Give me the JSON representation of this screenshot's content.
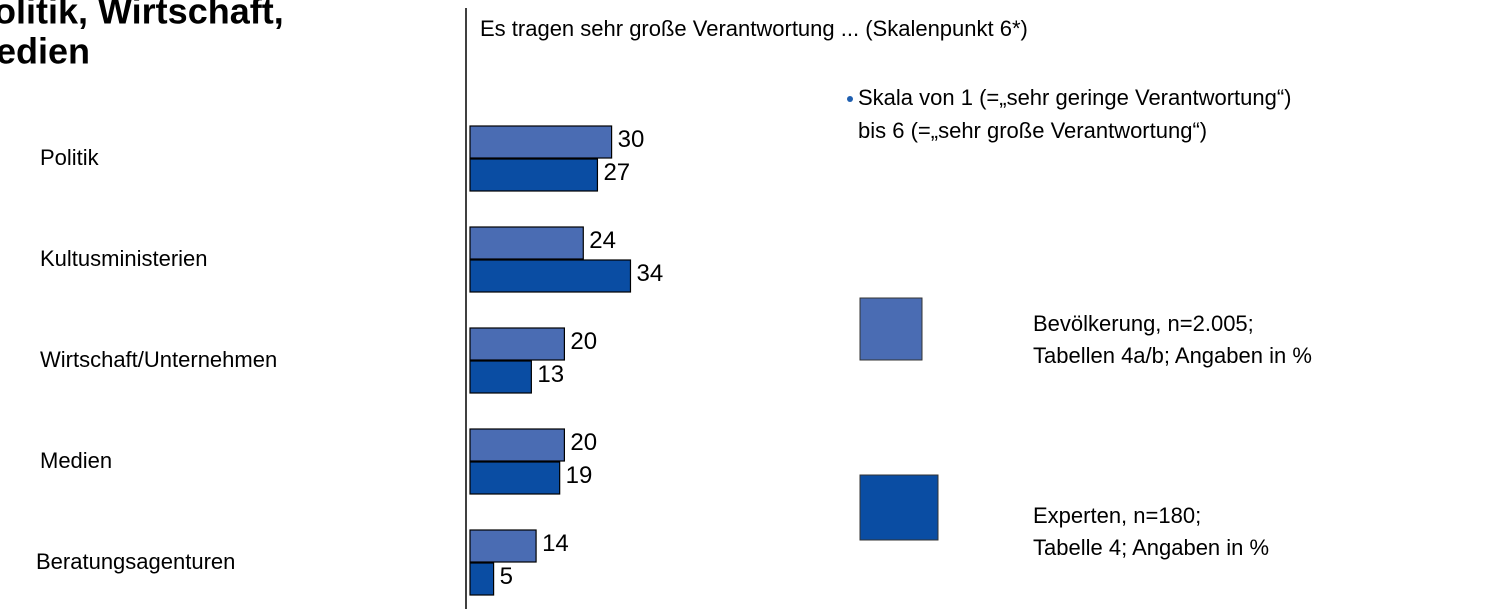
{
  "chart_data": {
    "type": "bar",
    "orientation": "horizontal",
    "title": [
      "olitik, Wirtschaft,",
      "edien"
    ],
    "subtitle": "Es tragen sehr große Verantwortung ... (Skalenpunkt 6*)",
    "annotation": [
      "Skala von 1 (=„sehr geringe Verantwortung“)",
      "bis 6 (=„sehr große Verantwortung“)"
    ],
    "categories": [
      "Politik",
      "Kultusministerien",
      "Wirtschaft/Unternehmen",
      "Medien",
      "Beratungsagenturen"
    ],
    "series": [
      {
        "name": "Bevölkerung, n=2.005;",
        "note": "Tabellen 4a/b; Angaben in %",
        "color": "#4a6cb3",
        "values": [
          30,
          24,
          20,
          20,
          14
        ]
      },
      {
        "name": "Experten, n=180;",
        "note": "Tabelle 4; Angaben in %",
        "color": "#0a4da3",
        "values": [
          27,
          34,
          13,
          19,
          5
        ]
      }
    ]
  }
}
